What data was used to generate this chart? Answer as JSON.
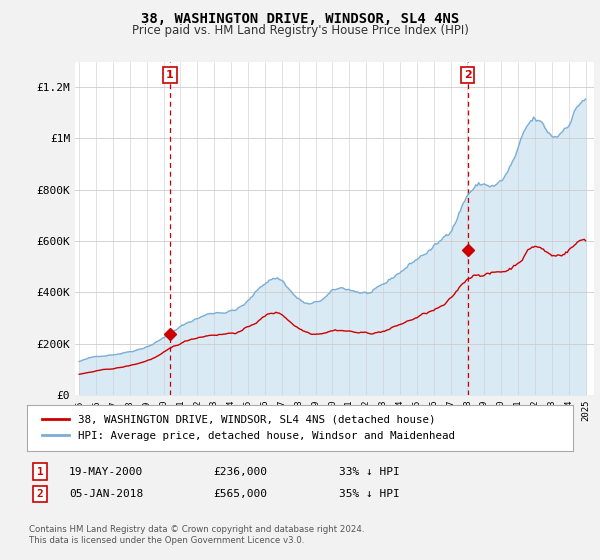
{
  "title": "38, WASHINGTON DRIVE, WINDSOR, SL4 4NS",
  "subtitle": "Price paid vs. HM Land Registry's House Price Index (HPI)",
  "legend_line1": "38, WASHINGTON DRIVE, WINDSOR, SL4 4NS (detached house)",
  "legend_line2": "HPI: Average price, detached house, Windsor and Maidenhead",
  "annotation1_date": "19-MAY-2000",
  "annotation1_price": "£236,000",
  "annotation1_hpi": "33% ↓ HPI",
  "annotation2_date": "05-JAN-2018",
  "annotation2_price": "£565,000",
  "annotation2_hpi": "35% ↓ HPI",
  "footer1": "Contains HM Land Registry data © Crown copyright and database right 2024.",
  "footer2": "This data is licensed under the Open Government Licence v3.0.",
  "red_color": "#cc0000",
  "blue_color": "#7aaed6",
  "blue_fill_color": "#daeaf5",
  "dashed_color": "#cc0000",
  "background_color": "#f2f2f2",
  "plot_bg_color": "#ffffff",
  "ylim": [
    0,
    1300000
  ],
  "yticks": [
    0,
    200000,
    400000,
    600000,
    800000,
    1000000,
    1200000
  ],
  "sale1_x": 2000.38,
  "sale1_y": 236000,
  "sale2_x": 2018.01,
  "sale2_y": 565000,
  "xlim_min": 1994.75,
  "xlim_max": 2025.5
}
